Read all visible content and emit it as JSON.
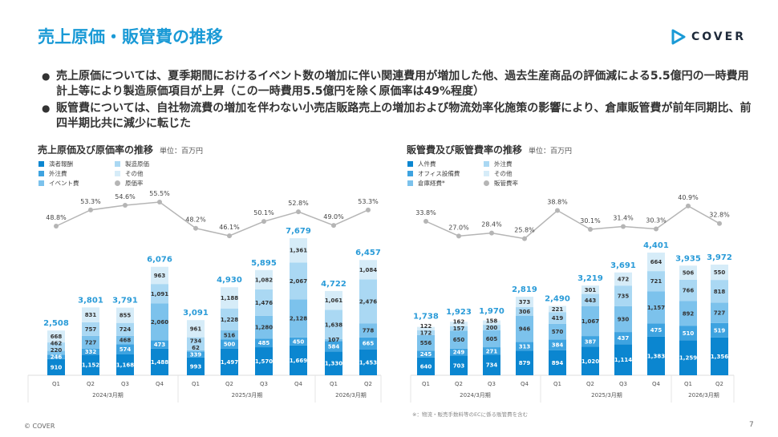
{
  "header": {
    "title": "売上原価・販管費の推移",
    "logo_text": "COVER"
  },
  "bullets": [
    "売上原価については、夏季期間におけるイベント数の増加に伴い関連費用が増加した他、過去生産商品の評価減による5.5億円の一時費用計上等により製造原価項目が上昇（この一時費用5.5億円を除く原価率は49%程度）",
    "販管費については、自社物流費の増加を伴わない小売店販路売上の増加および物流効率化施策の影響により、倉庫販管費が前年同期比、前四半期比共に減少に転じた"
  ],
  "chart_data": [
    {
      "type": "bar",
      "stacked": true,
      "title": "売上原価及び原価率の推移",
      "unit": "単位：百万円",
      "categories": [
        "Q1",
        "Q2",
        "Q3",
        "Q4",
        "Q1",
        "Q2",
        "Q3",
        "Q4",
        "Q1",
        "Q2"
      ],
      "groups": [
        {
          "label": "2024/3月期",
          "span": 4
        },
        {
          "label": "2025/3月期",
          "span": 4
        },
        {
          "label": "2026/3月期",
          "span": 2
        }
      ],
      "totals": [
        "2,508",
        "3,801",
        "3,791",
        "6,076",
        "3,091",
        "4,930",
        "5,895",
        "7,679",
        "4,722",
        "6,457"
      ],
      "series": [
        {
          "name": "演者報酬",
          "color": "#0b86d0",
          "values": [
            910,
            1152,
            1168,
            1488,
            993,
            1497,
            1570,
            1669,
            1330,
            1453
          ]
        },
        {
          "name": "外注費",
          "color": "#3ea3e0",
          "values": [
            246,
            332,
            574,
            473,
            339,
            500,
            485,
            450,
            584,
            665
          ]
        },
        {
          "name": "イベント費",
          "color": "#7cc2ec",
          "values": [
            220,
            727,
            468,
            2060,
            62,
            516,
            1280,
            2128,
            107,
            778
          ]
        },
        {
          "name": "製造原価",
          "color": "#aad8f3",
          "values": [
            462,
            757,
            724,
            1091,
            734,
            1228,
            1476,
            2067,
            1638,
            2476
          ]
        },
        {
          "name": "その他",
          "color": "#d6ecf8",
          "values": [
            668,
            831,
            855,
            963,
            961,
            1188,
            1082,
            1361,
            1061,
            1084
          ]
        }
      ],
      "rate": {
        "name": "原価率",
        "color": "#b5b5b5",
        "values": [
          48.8,
          53.3,
          54.6,
          55.5,
          48.2,
          46.1,
          50.1,
          52.8,
          49.0,
          53.3
        ]
      }
    },
    {
      "type": "bar",
      "stacked": true,
      "title": "販管費及び販管費率の推移",
      "unit": "単位：百万円",
      "categories": [
        "Q1",
        "Q2",
        "Q3",
        "Q4",
        "Q1",
        "Q2",
        "Q3",
        "Q4",
        "Q1",
        "Q2"
      ],
      "groups": [
        {
          "label": "2024/3月期",
          "span": 4
        },
        {
          "label": "2025/3月期",
          "span": 4
        },
        {
          "label": "2026/3月期",
          "span": 2
        }
      ],
      "totals": [
        "1,738",
        "1,923",
        "1,970",
        "2,819",
        "2,490",
        "3,219",
        "3,691",
        "4,401",
        "3,935",
        "3,972"
      ],
      "series": [
        {
          "name": "人件費",
          "color": "#0b86d0",
          "values": [
            640,
            703,
            734,
            879,
            894,
            1020,
            1114,
            1383,
            1259,
            1356
          ]
        },
        {
          "name": "オフィス設備費",
          "color": "#3ea3e0",
          "values": [
            245,
            249,
            271,
            313,
            384,
            387,
            437,
            475,
            510,
            519
          ]
        },
        {
          "name": "倉庫経費*",
          "color": "#7cc2ec",
          "values": [
            556,
            650,
            605,
            946,
            570,
            1067,
            930,
            1157,
            892,
            727
          ]
        },
        {
          "name": "外注費",
          "color": "#aad8f3",
          "values": [
            172,
            157,
            200,
            306,
            419,
            443,
            735,
            721,
            766,
            818
          ]
        },
        {
          "name": "その他",
          "color": "#d6ecf8",
          "values": [
            122,
            162,
            158,
            373,
            221,
            301,
            472,
            664,
            506,
            550
          ]
        }
      ],
      "rate": {
        "name": "販管費率",
        "color": "#b5b5b5",
        "values": [
          33.8,
          27.0,
          28.4,
          25.8,
          38.8,
          30.1,
          31.4,
          30.3,
          40.9,
          32.8
        ]
      }
    }
  ],
  "footnote": "※：物流・販売手数料等のECに係る販管費を含む",
  "footer": {
    "copyright": "© COVER",
    "page": "7"
  },
  "colors": {
    "accent": "#1a9ad6",
    "total_label": "#2a9bd8"
  }
}
